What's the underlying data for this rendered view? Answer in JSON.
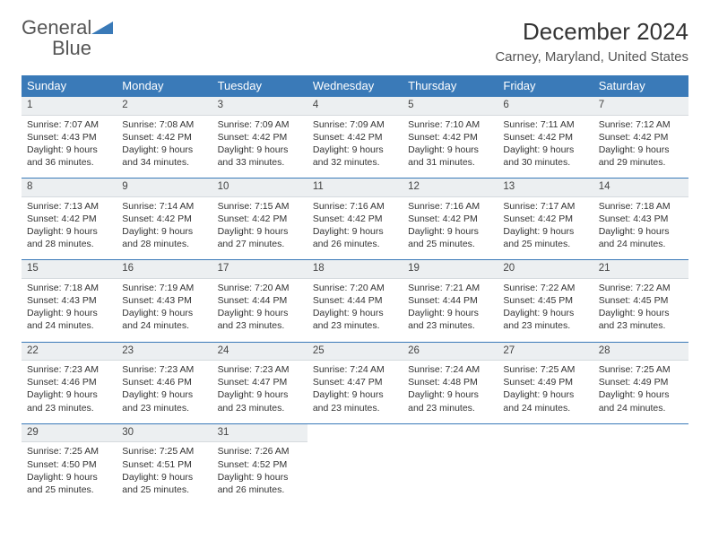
{
  "logo": {
    "text_general": "General",
    "text_blue": "Blue",
    "icon_color": "#3a7ab8"
  },
  "header": {
    "month_title": "December 2024",
    "location": "Carney, Maryland, United States"
  },
  "colors": {
    "header_bg": "#3a7ab8",
    "header_text": "#ffffff",
    "daynum_bg": "#eceff1",
    "border": "#3a7ab8"
  },
  "day_headers": [
    "Sunday",
    "Monday",
    "Tuesday",
    "Wednesday",
    "Thursday",
    "Friday",
    "Saturday"
  ],
  "days": [
    {
      "n": "1",
      "sunrise": "Sunrise: 7:07 AM",
      "sunset": "Sunset: 4:43 PM",
      "daylight": "Daylight: 9 hours and 36 minutes."
    },
    {
      "n": "2",
      "sunrise": "Sunrise: 7:08 AM",
      "sunset": "Sunset: 4:42 PM",
      "daylight": "Daylight: 9 hours and 34 minutes."
    },
    {
      "n": "3",
      "sunrise": "Sunrise: 7:09 AM",
      "sunset": "Sunset: 4:42 PM",
      "daylight": "Daylight: 9 hours and 33 minutes."
    },
    {
      "n": "4",
      "sunrise": "Sunrise: 7:09 AM",
      "sunset": "Sunset: 4:42 PM",
      "daylight": "Daylight: 9 hours and 32 minutes."
    },
    {
      "n": "5",
      "sunrise": "Sunrise: 7:10 AM",
      "sunset": "Sunset: 4:42 PM",
      "daylight": "Daylight: 9 hours and 31 minutes."
    },
    {
      "n": "6",
      "sunrise": "Sunrise: 7:11 AM",
      "sunset": "Sunset: 4:42 PM",
      "daylight": "Daylight: 9 hours and 30 minutes."
    },
    {
      "n": "7",
      "sunrise": "Sunrise: 7:12 AM",
      "sunset": "Sunset: 4:42 PM",
      "daylight": "Daylight: 9 hours and 29 minutes."
    },
    {
      "n": "8",
      "sunrise": "Sunrise: 7:13 AM",
      "sunset": "Sunset: 4:42 PM",
      "daylight": "Daylight: 9 hours and 28 minutes."
    },
    {
      "n": "9",
      "sunrise": "Sunrise: 7:14 AM",
      "sunset": "Sunset: 4:42 PM",
      "daylight": "Daylight: 9 hours and 28 minutes."
    },
    {
      "n": "10",
      "sunrise": "Sunrise: 7:15 AM",
      "sunset": "Sunset: 4:42 PM",
      "daylight": "Daylight: 9 hours and 27 minutes."
    },
    {
      "n": "11",
      "sunrise": "Sunrise: 7:16 AM",
      "sunset": "Sunset: 4:42 PM",
      "daylight": "Daylight: 9 hours and 26 minutes."
    },
    {
      "n": "12",
      "sunrise": "Sunrise: 7:16 AM",
      "sunset": "Sunset: 4:42 PM",
      "daylight": "Daylight: 9 hours and 25 minutes."
    },
    {
      "n": "13",
      "sunrise": "Sunrise: 7:17 AM",
      "sunset": "Sunset: 4:42 PM",
      "daylight": "Daylight: 9 hours and 25 minutes."
    },
    {
      "n": "14",
      "sunrise": "Sunrise: 7:18 AM",
      "sunset": "Sunset: 4:43 PM",
      "daylight": "Daylight: 9 hours and 24 minutes."
    },
    {
      "n": "15",
      "sunrise": "Sunrise: 7:18 AM",
      "sunset": "Sunset: 4:43 PM",
      "daylight": "Daylight: 9 hours and 24 minutes."
    },
    {
      "n": "16",
      "sunrise": "Sunrise: 7:19 AM",
      "sunset": "Sunset: 4:43 PM",
      "daylight": "Daylight: 9 hours and 24 minutes."
    },
    {
      "n": "17",
      "sunrise": "Sunrise: 7:20 AM",
      "sunset": "Sunset: 4:44 PM",
      "daylight": "Daylight: 9 hours and 23 minutes."
    },
    {
      "n": "18",
      "sunrise": "Sunrise: 7:20 AM",
      "sunset": "Sunset: 4:44 PM",
      "daylight": "Daylight: 9 hours and 23 minutes."
    },
    {
      "n": "19",
      "sunrise": "Sunrise: 7:21 AM",
      "sunset": "Sunset: 4:44 PM",
      "daylight": "Daylight: 9 hours and 23 minutes."
    },
    {
      "n": "20",
      "sunrise": "Sunrise: 7:22 AM",
      "sunset": "Sunset: 4:45 PM",
      "daylight": "Daylight: 9 hours and 23 minutes."
    },
    {
      "n": "21",
      "sunrise": "Sunrise: 7:22 AM",
      "sunset": "Sunset: 4:45 PM",
      "daylight": "Daylight: 9 hours and 23 minutes."
    },
    {
      "n": "22",
      "sunrise": "Sunrise: 7:23 AM",
      "sunset": "Sunset: 4:46 PM",
      "daylight": "Daylight: 9 hours and 23 minutes."
    },
    {
      "n": "23",
      "sunrise": "Sunrise: 7:23 AM",
      "sunset": "Sunset: 4:46 PM",
      "daylight": "Daylight: 9 hours and 23 minutes."
    },
    {
      "n": "24",
      "sunrise": "Sunrise: 7:23 AM",
      "sunset": "Sunset: 4:47 PM",
      "daylight": "Daylight: 9 hours and 23 minutes."
    },
    {
      "n": "25",
      "sunrise": "Sunrise: 7:24 AM",
      "sunset": "Sunset: 4:47 PM",
      "daylight": "Daylight: 9 hours and 23 minutes."
    },
    {
      "n": "26",
      "sunrise": "Sunrise: 7:24 AM",
      "sunset": "Sunset: 4:48 PM",
      "daylight": "Daylight: 9 hours and 23 minutes."
    },
    {
      "n": "27",
      "sunrise": "Sunrise: 7:25 AM",
      "sunset": "Sunset: 4:49 PM",
      "daylight": "Daylight: 9 hours and 24 minutes."
    },
    {
      "n": "28",
      "sunrise": "Sunrise: 7:25 AM",
      "sunset": "Sunset: 4:49 PM",
      "daylight": "Daylight: 9 hours and 24 minutes."
    },
    {
      "n": "29",
      "sunrise": "Sunrise: 7:25 AM",
      "sunset": "Sunset: 4:50 PM",
      "daylight": "Daylight: 9 hours and 25 minutes."
    },
    {
      "n": "30",
      "sunrise": "Sunrise: 7:25 AM",
      "sunset": "Sunset: 4:51 PM",
      "daylight": "Daylight: 9 hours and 25 minutes."
    },
    {
      "n": "31",
      "sunrise": "Sunrise: 7:26 AM",
      "sunset": "Sunset: 4:52 PM",
      "daylight": "Daylight: 9 hours and 26 minutes."
    }
  ]
}
